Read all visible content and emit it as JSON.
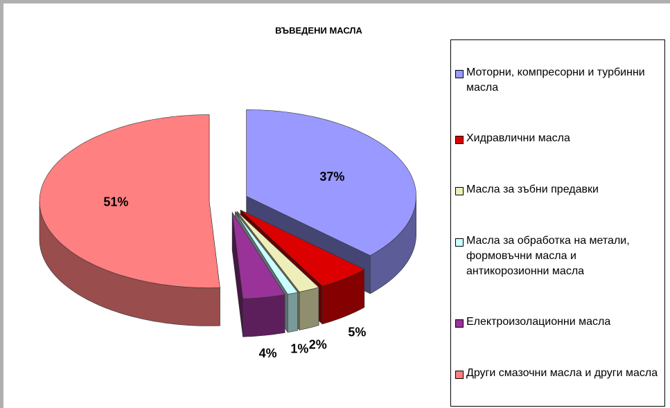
{
  "chart_data": {
    "type": "pie",
    "title": "ВЪВЕДЕНИ МАСЛА",
    "categories": [
      "Моторни, компресорни и турбинни масла",
      "Хидравлични масла",
      "Масла за зъбни предавки",
      "Масла за обработка на метали, формовъчни масла и антикорозионни масла",
      "Електроизолационни масла",
      "Други смазочни масла и други масла"
    ],
    "values": [
      37,
      5,
      2,
      1,
      4,
      51
    ],
    "value_labels": [
      "37%",
      "5%",
      "2%",
      "1%",
      "4%",
      "51%"
    ],
    "colors": [
      "#9999ff",
      "#dd0000",
      "#eeeebb",
      "#ccffff",
      "#993399",
      "#ff8080"
    ],
    "legend": "right"
  }
}
